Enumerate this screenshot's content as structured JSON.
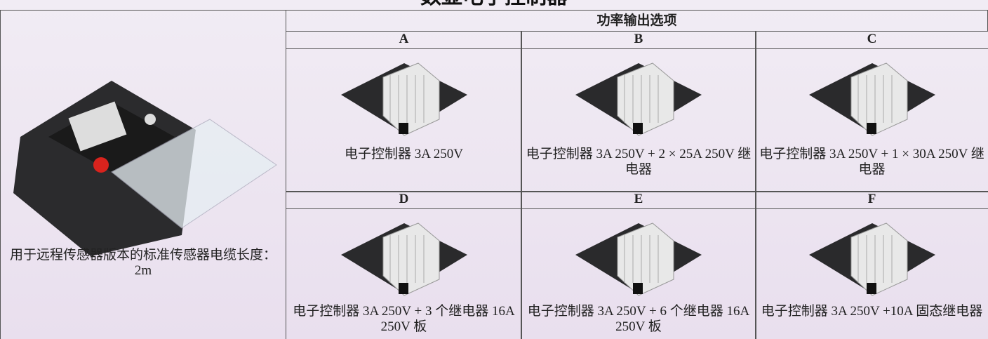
{
  "title": "数显电子控制器",
  "table": {
    "header": "功率输出选项",
    "left_caption": "用于远程传感器版本的标准传感器电缆长度：2m",
    "options": [
      {
        "label": "A",
        "caption": "电子控制器 3A 250V"
      },
      {
        "label": "B",
        "caption": "电子控制器 3A 250V + 2 × 25A 250V 继电器"
      },
      {
        "label": "C",
        "caption": "电子控制器 3A 250V + 1 × 30A 250V 继电器"
      },
      {
        "label": "D",
        "caption": "电子控制器 3A 250V + 3 个继电器 16A 250V 板"
      },
      {
        "label": "E",
        "caption": "电子控制器 3A 250V + 6 个继电器 16A 250V 板"
      },
      {
        "label": "F",
        "caption": "电子控制器 3A 250V +10A 固态继电器"
      }
    ]
  }
}
